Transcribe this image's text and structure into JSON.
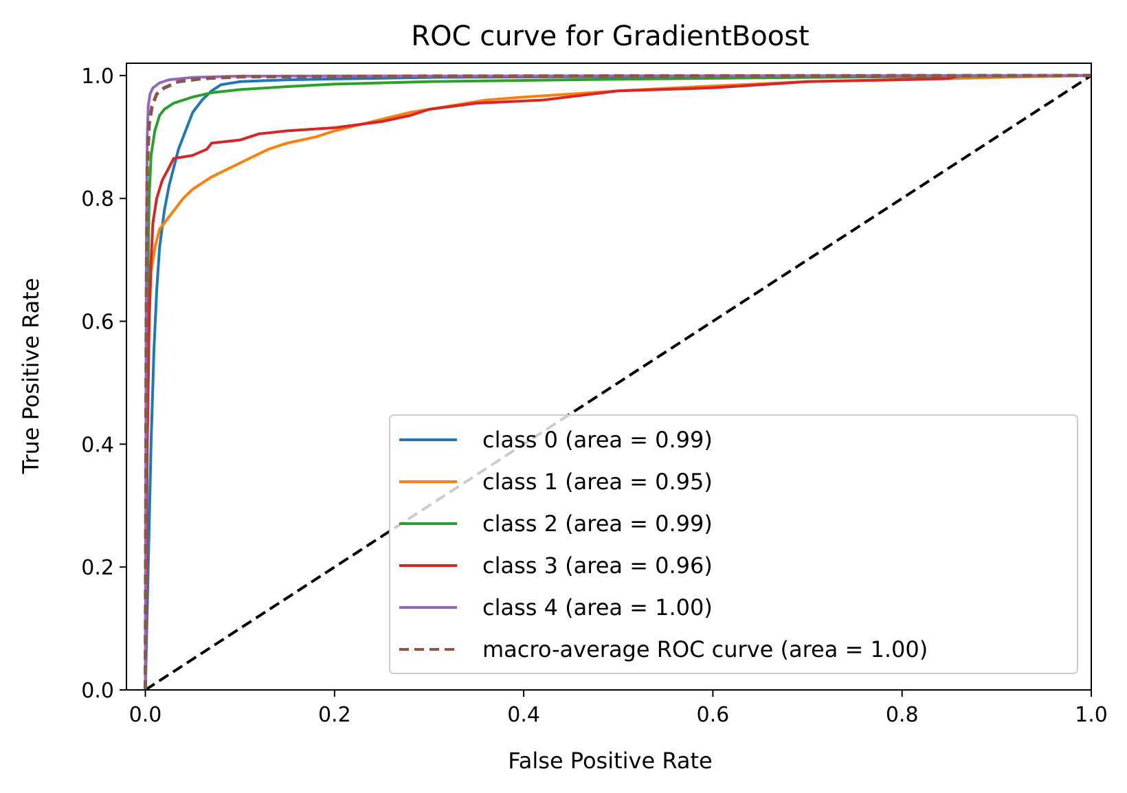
{
  "chart_data": {
    "type": "line",
    "title": "ROC curve for GradientBoost",
    "xlabel": "False Positive Rate",
    "ylabel": "True Positive Rate",
    "xlim": [
      -0.02,
      1.0
    ],
    "ylim": [
      0.0,
      1.02
    ],
    "xticks": [
      0.0,
      0.2,
      0.4,
      0.6,
      0.8,
      1.0
    ],
    "xtick_labels": [
      "0.0",
      "0.2",
      "0.4",
      "0.6",
      "0.8",
      "1.0"
    ],
    "yticks": [
      0.0,
      0.2,
      0.4,
      0.6,
      0.8,
      1.0
    ],
    "ytick_labels": [
      "0.0",
      "0.2",
      "0.4",
      "0.6",
      "0.8",
      "1.0"
    ],
    "grid": false,
    "legend_position": "lower-right",
    "series": [
      {
        "name": "class 0 (area = 0.99)",
        "color": "#1f77b4",
        "style": "solid",
        "points": [
          [
            0.0,
            0.0
          ],
          [
            0.003,
            0.2
          ],
          [
            0.006,
            0.4
          ],
          [
            0.009,
            0.55
          ],
          [
            0.012,
            0.65
          ],
          [
            0.015,
            0.72
          ],
          [
            0.02,
            0.78
          ],
          [
            0.025,
            0.82
          ],
          [
            0.03,
            0.85
          ],
          [
            0.035,
            0.88
          ],
          [
            0.04,
            0.9
          ],
          [
            0.045,
            0.92
          ],
          [
            0.05,
            0.94
          ],
          [
            0.06,
            0.96
          ],
          [
            0.07,
            0.975
          ],
          [
            0.08,
            0.985
          ],
          [
            0.1,
            0.99
          ],
          [
            0.15,
            0.993
          ],
          [
            0.3,
            0.997
          ],
          [
            0.6,
            0.999
          ],
          [
            1.0,
            1.0
          ]
        ]
      },
      {
        "name": "class 1 (area = 0.95)",
        "color": "#ff7f0e",
        "style": "solid",
        "points": [
          [
            0.0,
            0.0
          ],
          [
            0.002,
            0.4
          ],
          [
            0.004,
            0.6
          ],
          [
            0.006,
            0.68
          ],
          [
            0.01,
            0.72
          ],
          [
            0.015,
            0.75
          ],
          [
            0.02,
            0.76
          ],
          [
            0.03,
            0.78
          ],
          [
            0.04,
            0.8
          ],
          [
            0.05,
            0.815
          ],
          [
            0.07,
            0.835
          ],
          [
            0.09,
            0.85
          ],
          [
            0.11,
            0.865
          ],
          [
            0.13,
            0.88
          ],
          [
            0.15,
            0.89
          ],
          [
            0.18,
            0.9
          ],
          [
            0.2,
            0.91
          ],
          [
            0.24,
            0.925
          ],
          [
            0.28,
            0.94
          ],
          [
            0.32,
            0.95
          ],
          [
            0.36,
            0.96
          ],
          [
            0.4,
            0.965
          ],
          [
            0.45,
            0.97
          ],
          [
            0.5,
            0.975
          ],
          [
            0.6,
            0.983
          ],
          [
            0.7,
            0.99
          ],
          [
            0.8,
            0.993
          ],
          [
            0.9,
            0.997
          ],
          [
            1.0,
            1.0
          ]
        ]
      },
      {
        "name": "class 2 (area = 0.99)",
        "color": "#2ca02c",
        "style": "solid",
        "points": [
          [
            0.0,
            0.0
          ],
          [
            0.002,
            0.6
          ],
          [
            0.004,
            0.8
          ],
          [
            0.006,
            0.87
          ],
          [
            0.01,
            0.91
          ],
          [
            0.015,
            0.935
          ],
          [
            0.02,
            0.945
          ],
          [
            0.03,
            0.955
          ],
          [
            0.05,
            0.965
          ],
          [
            0.07,
            0.972
          ],
          [
            0.1,
            0.977
          ],
          [
            0.15,
            0.982
          ],
          [
            0.2,
            0.986
          ],
          [
            0.3,
            0.99
          ],
          [
            0.5,
            0.994
          ],
          [
            0.7,
            0.997
          ],
          [
            1.0,
            1.0
          ]
        ]
      },
      {
        "name": "class 3 (area = 0.96)",
        "color": "#d62728",
        "style": "solid",
        "points": [
          [
            0.0,
            0.0
          ],
          [
            0.002,
            0.4
          ],
          [
            0.004,
            0.6
          ],
          [
            0.006,
            0.7
          ],
          [
            0.008,
            0.76
          ],
          [
            0.012,
            0.8
          ],
          [
            0.018,
            0.83
          ],
          [
            0.025,
            0.85
          ],
          [
            0.03,
            0.865
          ],
          [
            0.05,
            0.87
          ],
          [
            0.065,
            0.88
          ],
          [
            0.07,
            0.89
          ],
          [
            0.1,
            0.895
          ],
          [
            0.12,
            0.905
          ],
          [
            0.15,
            0.91
          ],
          [
            0.2,
            0.915
          ],
          [
            0.25,
            0.925
          ],
          [
            0.28,
            0.935
          ],
          [
            0.3,
            0.945
          ],
          [
            0.35,
            0.955
          ],
          [
            0.42,
            0.96
          ],
          [
            0.5,
            0.975
          ],
          [
            0.6,
            0.98
          ],
          [
            0.7,
            0.99
          ],
          [
            0.85,
            0.995
          ],
          [
            0.86,
            1.0
          ],
          [
            1.0,
            1.0
          ]
        ]
      },
      {
        "name": "class 4 (area = 1.00)",
        "color": "#9467bd",
        "style": "solid",
        "points": [
          [
            0.0,
            0.0
          ],
          [
            0.001,
            0.7
          ],
          [
            0.002,
            0.9
          ],
          [
            0.003,
            0.95
          ],
          [
            0.005,
            0.97
          ],
          [
            0.008,
            0.98
          ],
          [
            0.015,
            0.988
          ],
          [
            0.025,
            0.993
          ],
          [
            0.05,
            0.997
          ],
          [
            0.1,
            0.999
          ],
          [
            1.0,
            1.0
          ]
        ]
      },
      {
        "name": "macro-average ROC curve (area = 1.00)",
        "color": "#8c564b",
        "style": "dashed",
        "points": [
          [
            0.0,
            0.0
          ],
          [
            0.001,
            0.6
          ],
          [
            0.002,
            0.85
          ],
          [
            0.004,
            0.92
          ],
          [
            0.007,
            0.95
          ],
          [
            0.012,
            0.97
          ],
          [
            0.02,
            0.98
          ],
          [
            0.035,
            0.99
          ],
          [
            0.06,
            0.995
          ],
          [
            0.1,
            0.998
          ],
          [
            0.3,
            0.999
          ],
          [
            1.0,
            1.0
          ]
        ]
      },
      {
        "name": "",
        "color": "#000000",
        "style": "dashed",
        "points": [
          [
            0.0,
            0.0
          ],
          [
            1.0,
            1.0
          ]
        ]
      }
    ]
  }
}
